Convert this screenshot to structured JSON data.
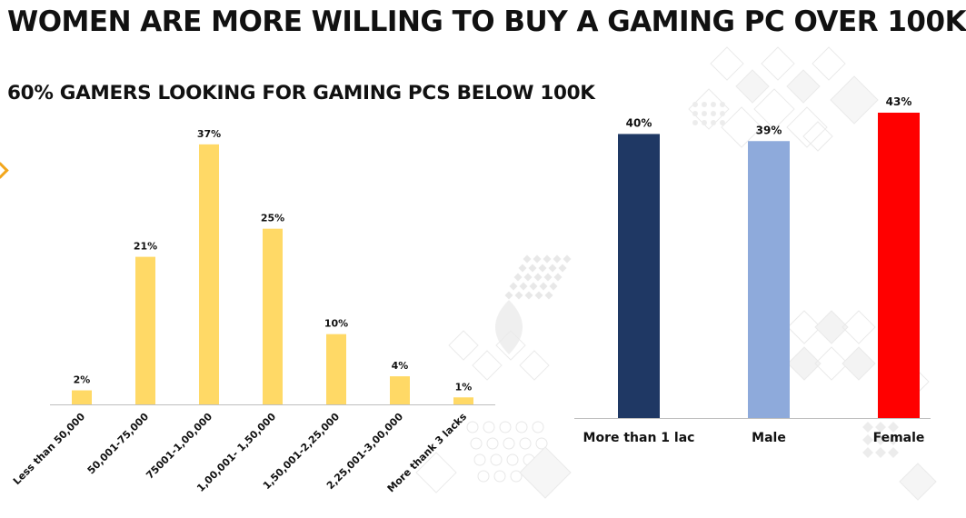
{
  "title": "WOMEN ARE MORE WILLING TO BUY A GAMING PC OVER 100K",
  "subtitle": "60% GAMERS LOOKING FOR GAMING PCS BELOW 100K",
  "colors": {
    "left_bar": "#ffd966",
    "right_bars": [
      "#1f3864",
      "#8eaadb",
      "#ff0000"
    ]
  },
  "chart_data": [
    {
      "type": "bar",
      "title": "60% GAMERS LOOKING FOR GAMING PCS BELOW 100K",
      "categories": [
        "Less than 50,000",
        "50,001-75,000",
        "75001-1,00,000",
        "1,00,001- 1,50,000",
        "1,50,001-2,25,000",
        "2,25,001-3,00,000",
        "More thank 3 lacks"
      ],
      "values": [
        2,
        21,
        37,
        25,
        10,
        4,
        1
      ],
      "data_labels": [
        "2%",
        "21%",
        "37%",
        "25%",
        "10%",
        "4%",
        "1%"
      ],
      "unit": "%",
      "ylim": [
        0,
        40
      ],
      "grid": false
    },
    {
      "type": "bar",
      "title": "WOMEN ARE MORE WILLING TO BUY A GAMING PC OVER 100K",
      "categories": [
        "More than 1 lac",
        "Male",
        "Female"
      ],
      "values": [
        40,
        39,
        43
      ],
      "data_labels": [
        "40%",
        "39%",
        "43%"
      ],
      "unit": "%",
      "ylim": [
        0,
        45
      ],
      "grid": false
    }
  ]
}
